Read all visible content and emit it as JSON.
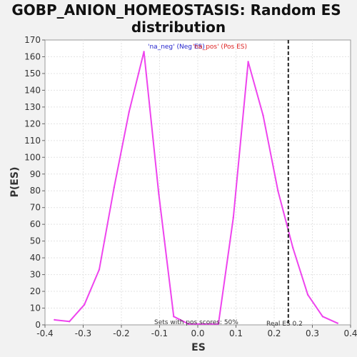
{
  "chart_data": {
    "type": "line",
    "title_line1": "GOBP_ANION_HOMEOSTASIS: Random ES",
    "title_line2": "distribution",
    "xlabel": "ES",
    "ylabel": "P(ES)",
    "xlim": [
      -0.4,
      0.4
    ],
    "ylim": [
      0,
      170
    ],
    "x_ticks": [
      -0.4,
      -0.3,
      -0.2,
      -0.1,
      0.0,
      0.1,
      0.2,
      0.3,
      0.4
    ],
    "x_tick_labels": [
      "-0.4",
      "-0.3",
      "-0.2",
      "-0.1",
      "0.0",
      "0.1",
      "0.2",
      "0.3",
      "0.4"
    ],
    "y_ticks": [
      0,
      10,
      20,
      30,
      40,
      50,
      60,
      70,
      80,
      90,
      100,
      110,
      120,
      130,
      140,
      150,
      160,
      170
    ],
    "grid": true,
    "series": [
      {
        "color": "#ee44ee",
        "x": [
          -0.375,
          -0.336,
          -0.297,
          -0.258,
          -0.219,
          -0.18,
          -0.141,
          -0.102,
          -0.063,
          -0.024,
          0.015,
          0.054,
          0.093,
          0.132,
          0.171,
          0.21,
          0.249,
          0.288,
          0.327,
          0.366
        ],
        "values": [
          3,
          2,
          12,
          33,
          82,
          127,
          163,
          78,
          5,
          0.5,
          0.5,
          0.5,
          64,
          157,
          125,
          80,
          46,
          18,
          5,
          1
        ]
      }
    ],
    "vline": {
      "x": 0.237,
      "style": "dashed",
      "color": "#222222"
    },
    "legend": {
      "neg_label": "'na_neg' (Neg ES)",
      "neg_color": "#2222cc",
      "pos_label": "'na_pos' (Pos ES)",
      "pos_color": "#dd2222",
      "placement": "top-center"
    },
    "annotations": {
      "pos_scores": "Sets with pos scores: 50%",
      "real_es": "Real ES 0.2"
    }
  }
}
